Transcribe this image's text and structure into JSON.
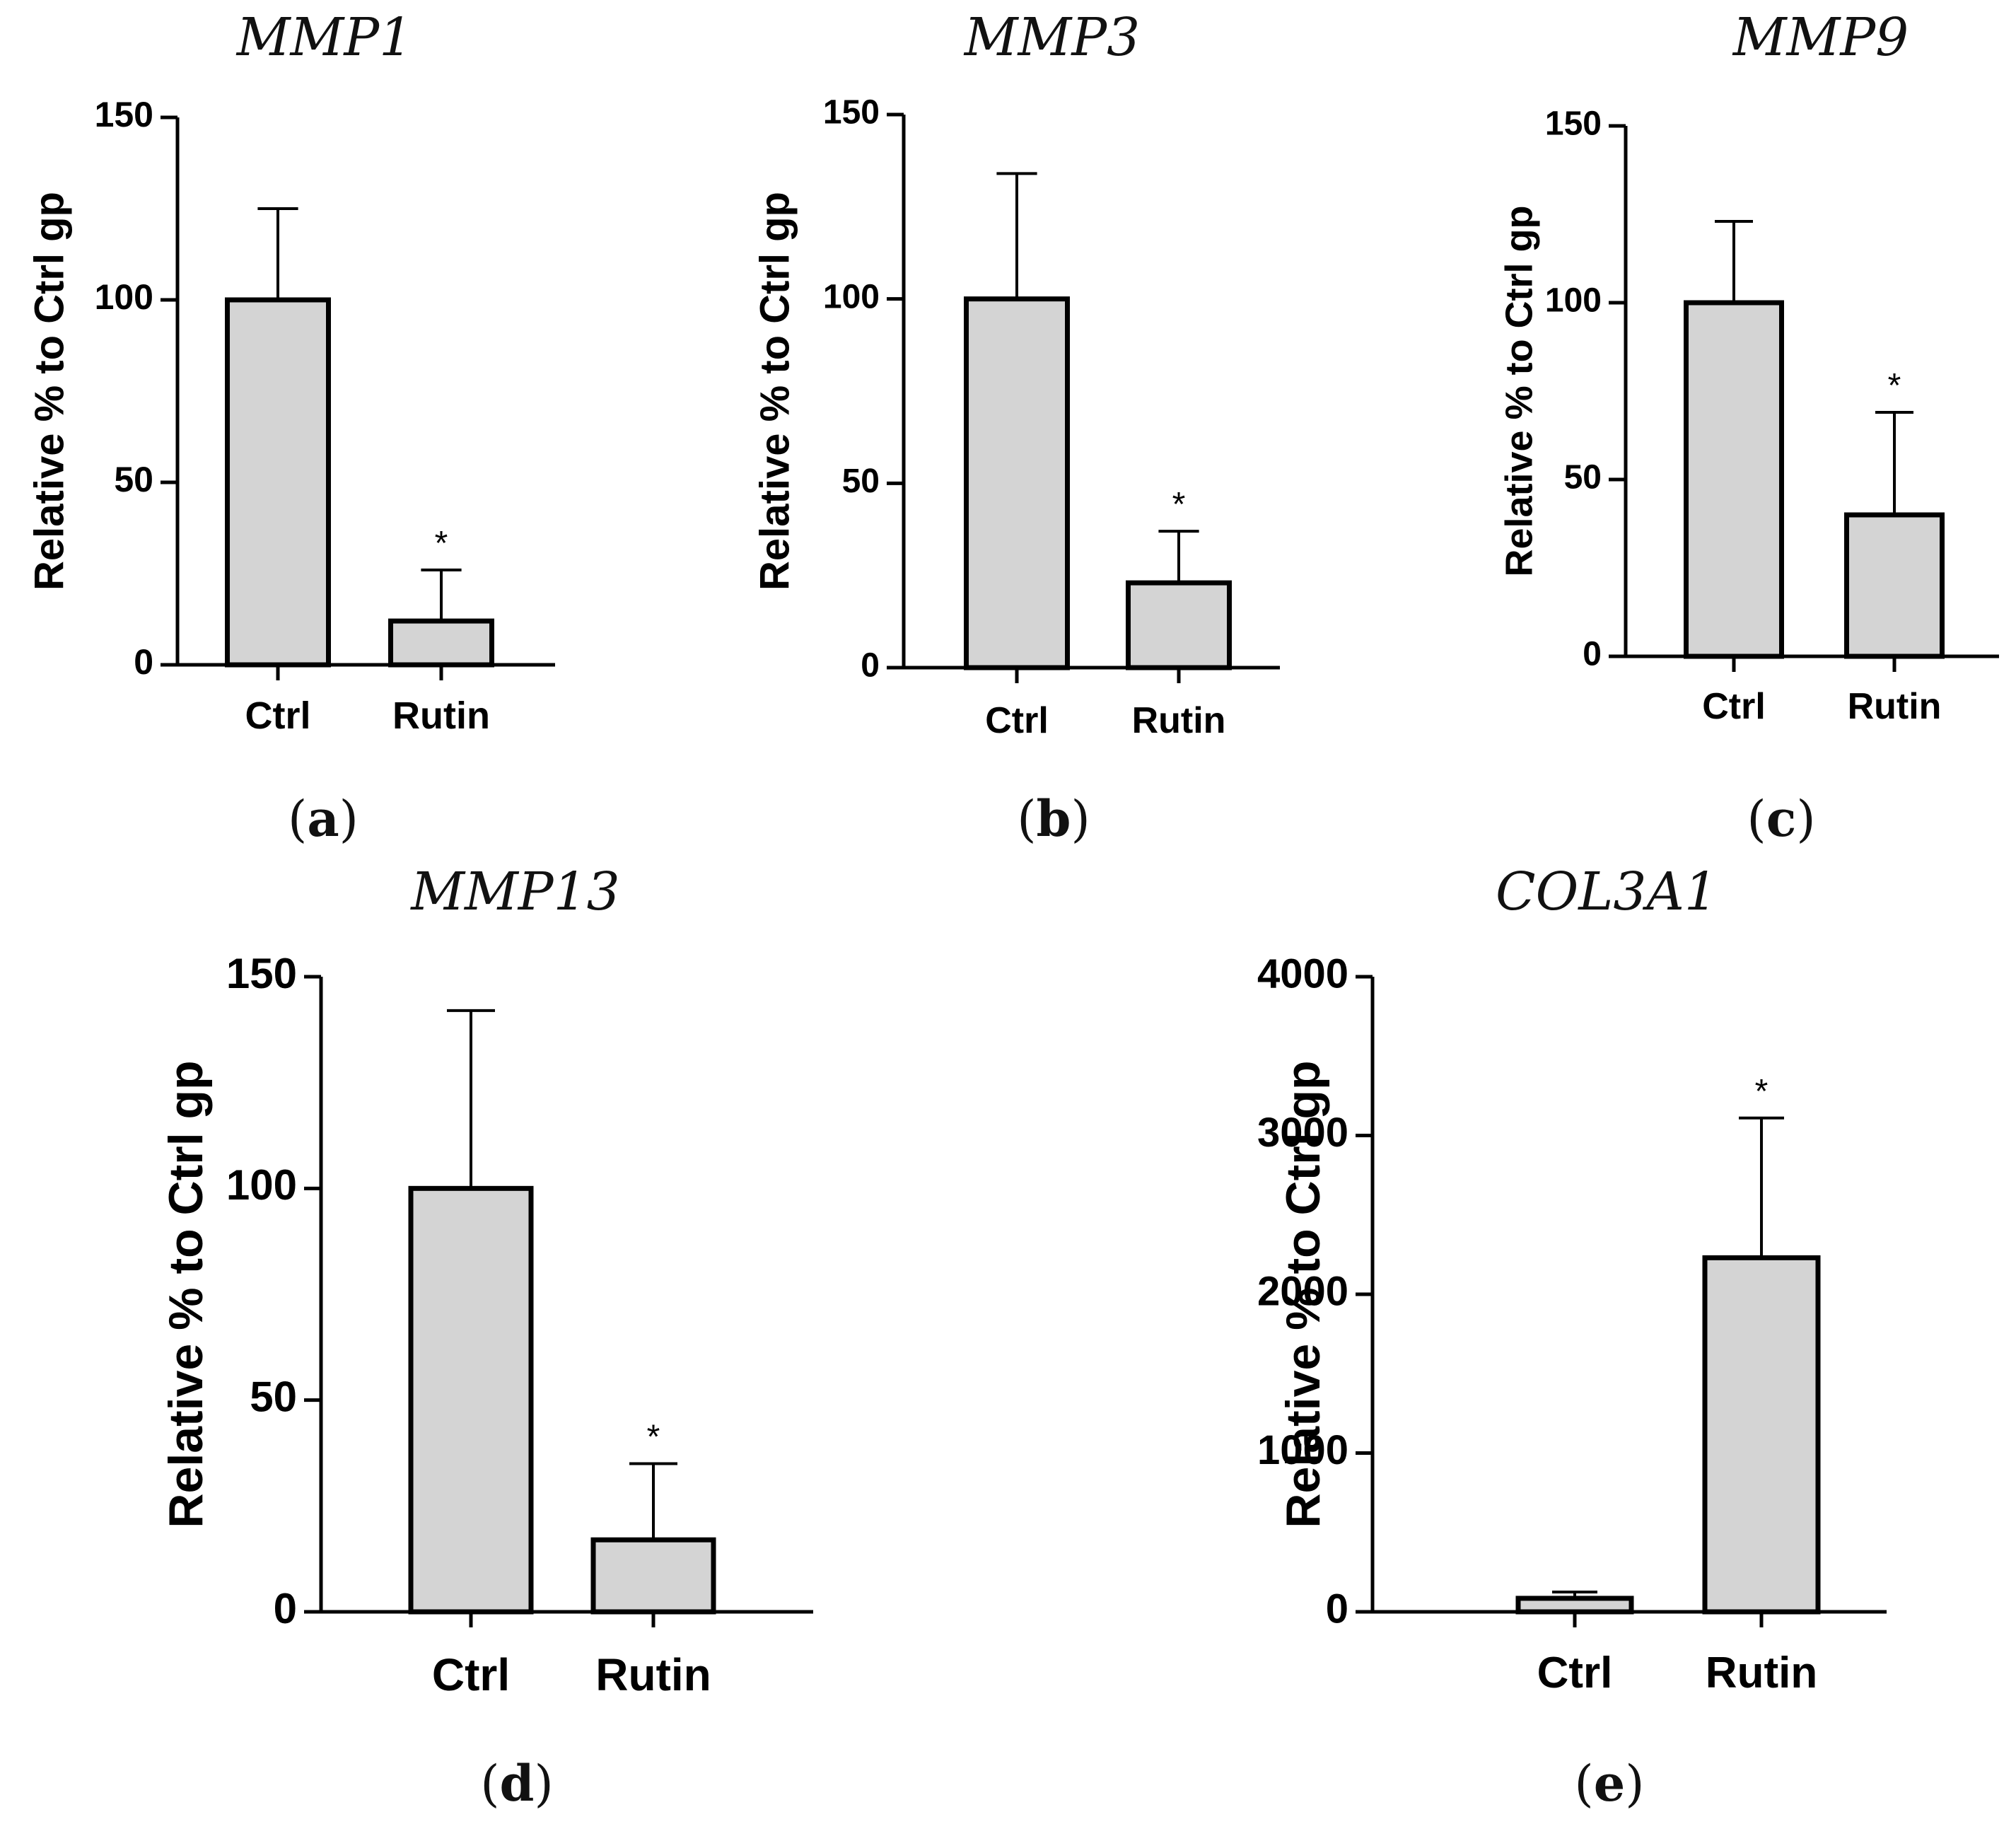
{
  "chart_data": [
    {
      "type": "bar",
      "title": "MMP1",
      "panel_label": "a",
      "categories": [
        "Ctrl",
        "Rutin"
      ],
      "values": [
        100,
        12
      ],
      "error_bars": [
        25,
        14
      ],
      "significance": [
        "",
        "*"
      ],
      "ylabel": "Relative % to Ctrl gp",
      "xlabel": "",
      "ylim": [
        0,
        150
      ],
      "yticks": [
        0,
        50,
        100,
        150
      ],
      "bar_color": "#d4d4d4"
    },
    {
      "type": "bar",
      "title": "MMP3",
      "panel_label": "b",
      "categories": [
        "Ctrl",
        "Rutin"
      ],
      "values": [
        100,
        23
      ],
      "error_bars": [
        34,
        14
      ],
      "significance": [
        "",
        "*"
      ],
      "ylabel": "Relative % to Ctrl gp",
      "xlabel": "",
      "ylim": [
        0,
        150
      ],
      "yticks": [
        0,
        50,
        100,
        150
      ],
      "bar_color": "#d4d4d4"
    },
    {
      "type": "bar",
      "title": "MMP9",
      "panel_label": "c",
      "categories": [
        "Ctrl",
        "Rutin"
      ],
      "values": [
        100,
        40
      ],
      "error_bars": [
        23,
        29
      ],
      "significance": [
        "",
        "*"
      ],
      "ylabel": "Relative % to Ctrl gp",
      "xlabel": "",
      "ylim": [
        0,
        150
      ],
      "yticks": [
        0,
        50,
        100,
        150
      ],
      "bar_color": "#d4d4d4"
    },
    {
      "type": "bar",
      "title": "MMP13",
      "panel_label": "d",
      "categories": [
        "Ctrl",
        "Rutin"
      ],
      "values": [
        100,
        17
      ],
      "error_bars": [
        42,
        18
      ],
      "significance": [
        "",
        "*"
      ],
      "ylabel": "Relative % to Ctrl gp",
      "xlabel": "",
      "ylim": [
        0,
        150
      ],
      "yticks": [
        0,
        50,
        100,
        150
      ],
      "bar_color": "#d4d4d4"
    },
    {
      "type": "bar",
      "title": "COL3A1",
      "panel_label": "e",
      "categories": [
        "Ctrl",
        "Rutin"
      ],
      "values": [
        85,
        2230
      ],
      "error_bars": [
        40,
        880
      ],
      "significance": [
        "",
        "*"
      ],
      "ylabel": "Relative % to Ctrl gp",
      "xlabel": "",
      "ylim": [
        0,
        4000
      ],
      "yticks": [
        0,
        1000,
        2000,
        3000,
        4000
      ],
      "bar_color": "#d4d4d4"
    }
  ]
}
